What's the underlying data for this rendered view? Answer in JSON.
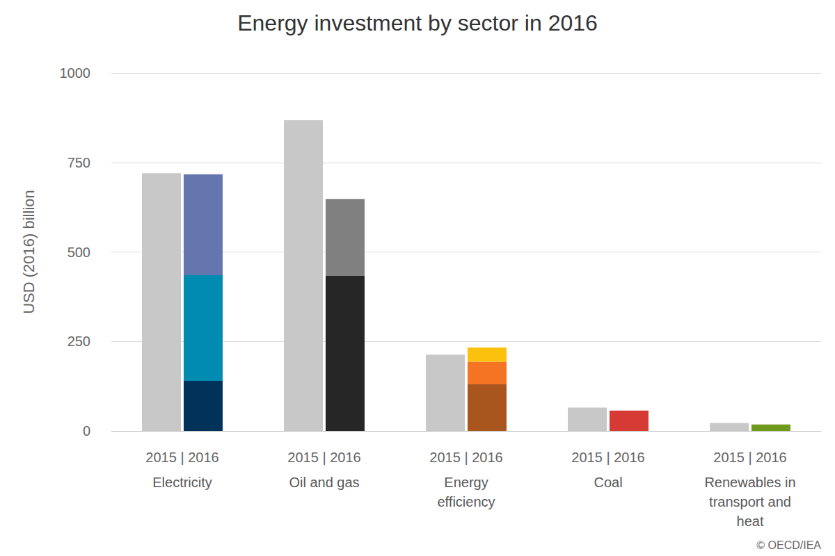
{
  "chart_data": {
    "type": "bar",
    "title": "Energy investment by sector in 2016",
    "y_label": "USD (2016) billion",
    "categories": [
      "Electricity",
      "Oil and gas",
      "Energy efficiency",
      "Coal",
      "Renewables in transport and heat"
    ],
    "bar_labels": "2015 | 2016",
    "credit": "© OECD/IEA",
    "series": [
      {
        "values": [
          720,
          868,
          213,
          65,
          22
        ],
        "color": "#c8c8c8",
        "stacked": false
      },
      {
        "values": [
          140,
          433,
          130,
          57,
          18
        ],
        "colors": [
          "#00325a",
          "#262626",
          "#a8561e",
          "#d63a35",
          "#6f9a1e"
        ],
        "stacked": true
      },
      {
        "values": [
          295,
          215,
          63,
          null,
          null
        ],
        "colors": [
          "#008bb0",
          "#808080",
          "#f47424",
          null,
          null
        ],
        "stacked": true
      },
      {
        "values": [
          282,
          null,
          40,
          null,
          null
        ],
        "colors": [
          "#6576ae",
          null,
          "#fcc10d",
          null,
          null
        ],
        "stacked": true
      }
    ],
    "ylim": [
      0,
      1000
    ],
    "yticks": [
      0,
      250,
      500,
      750,
      1000
    ],
    "grid": true
  }
}
